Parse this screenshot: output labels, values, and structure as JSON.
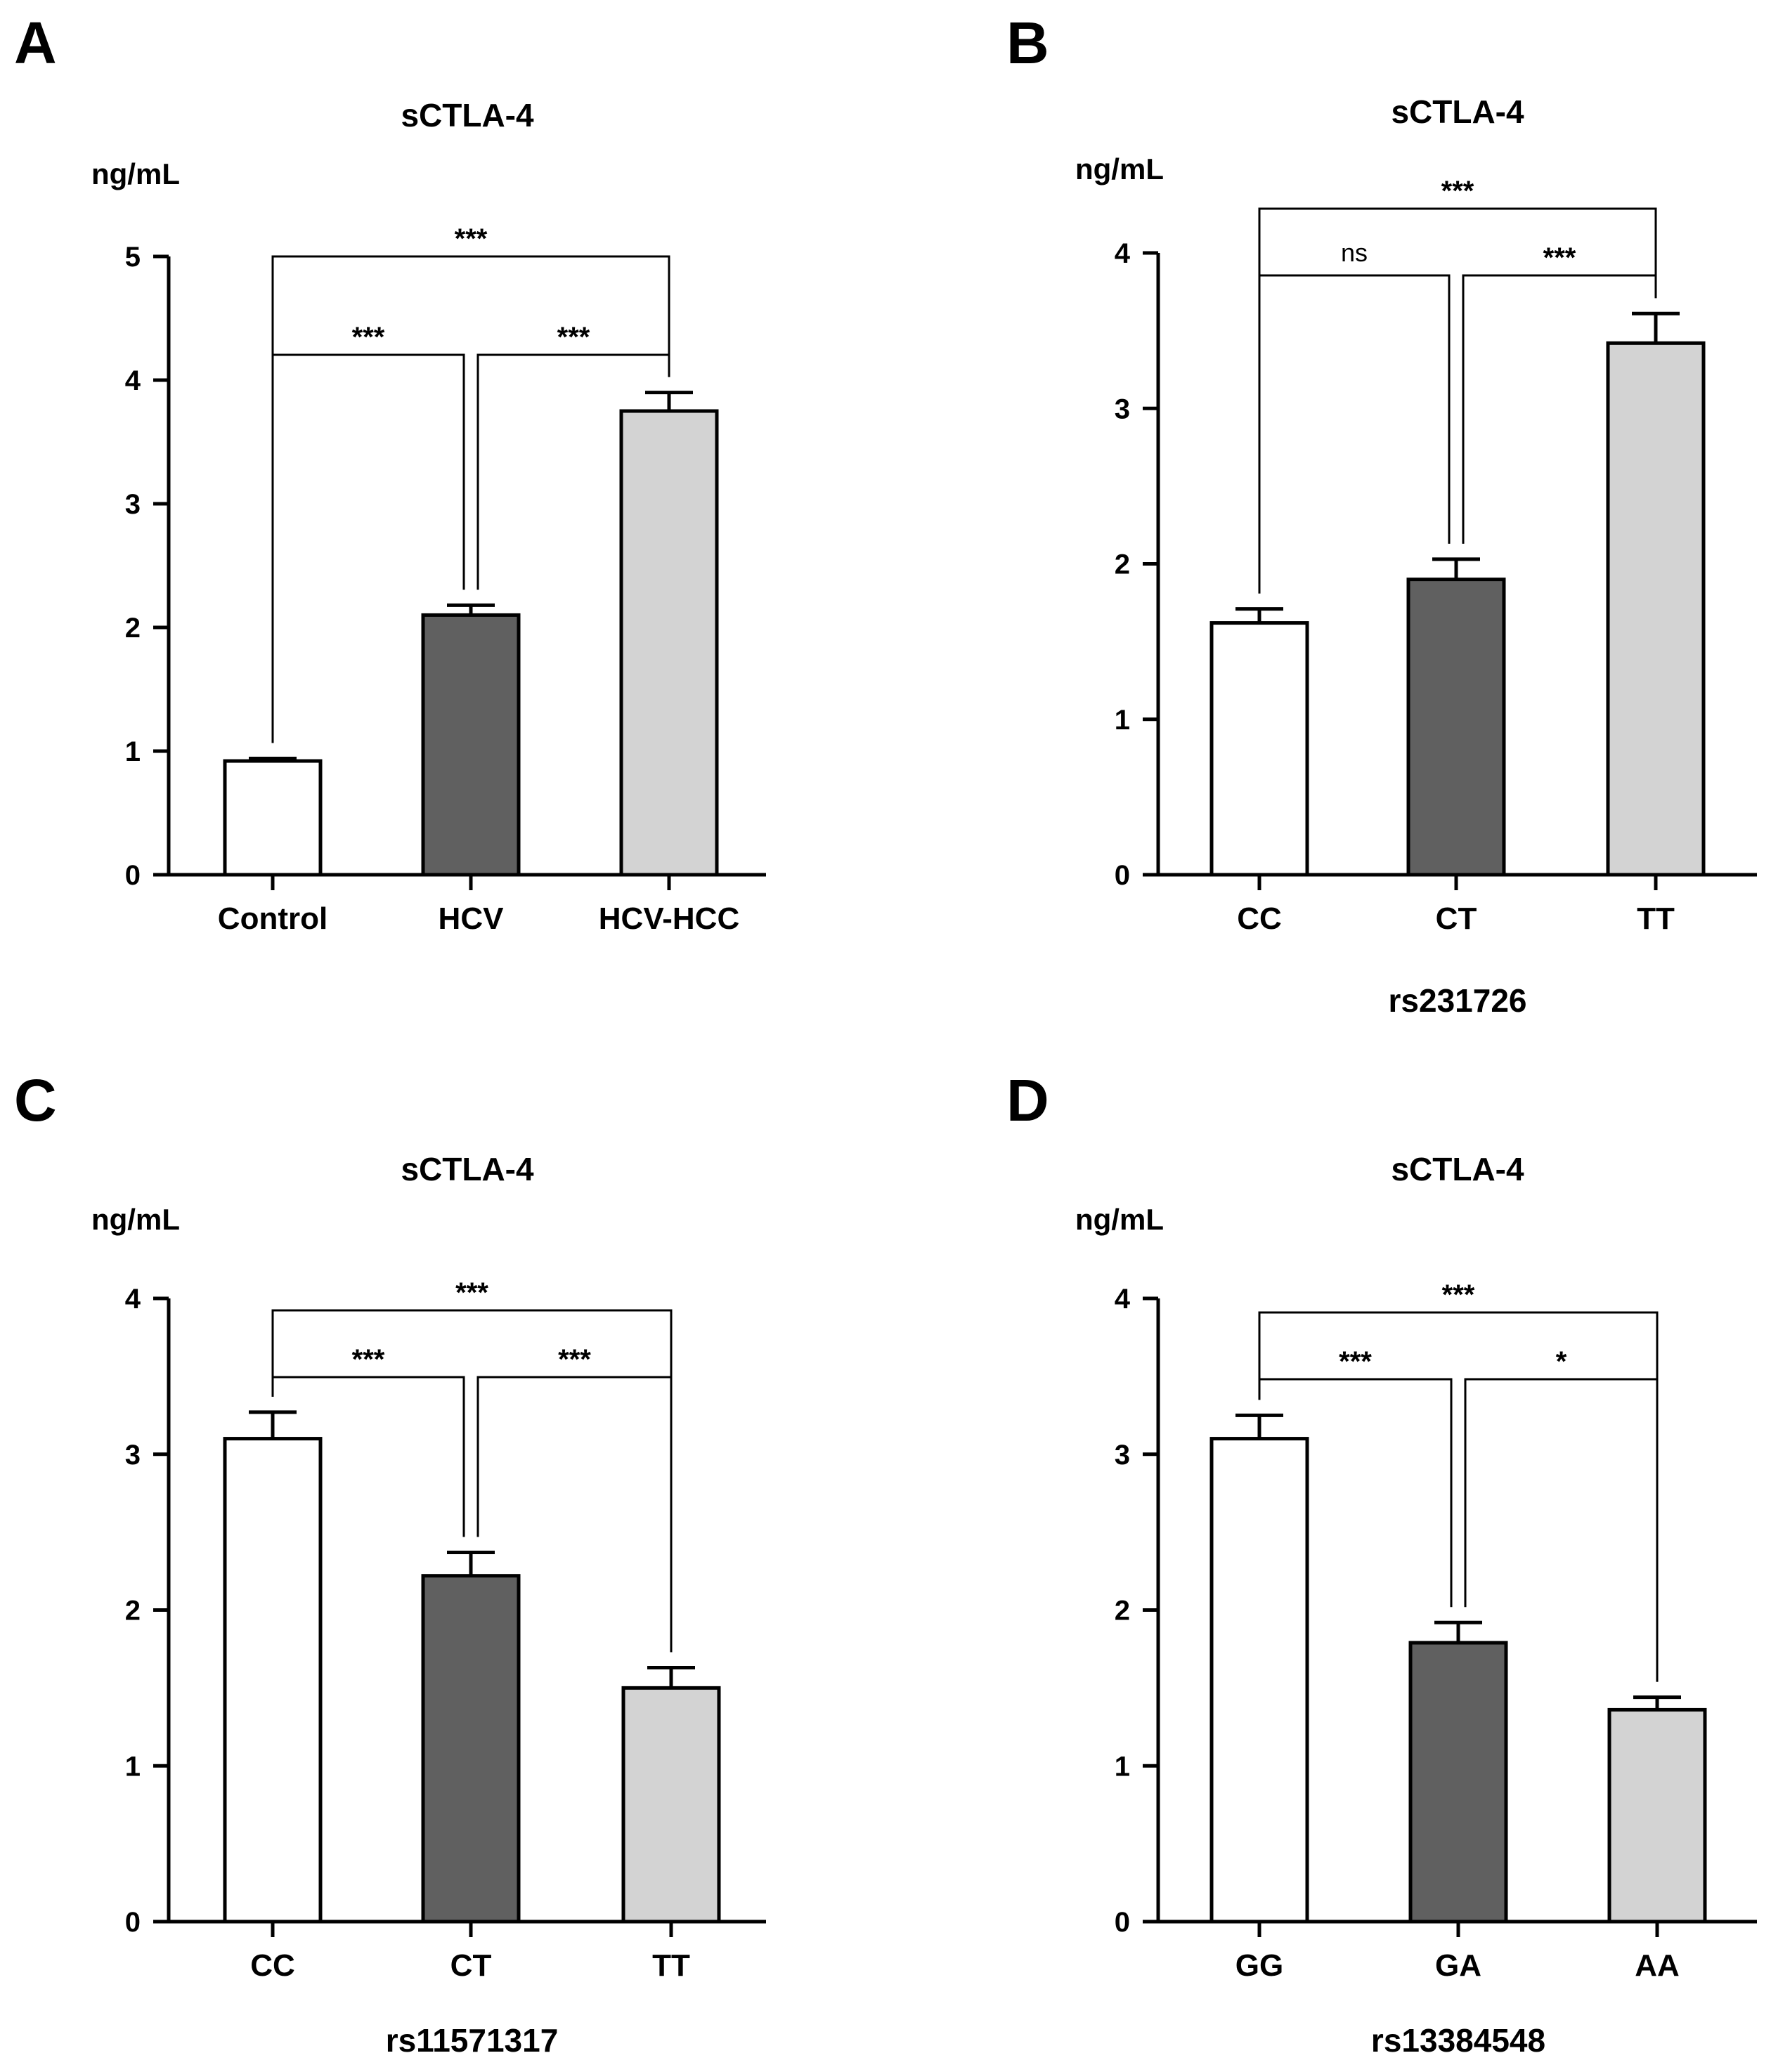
{
  "chart_data": [
    {
      "panel": "A",
      "type": "bar",
      "title": "sCTLA-4",
      "ylabel": "ng/mL",
      "xlabel": "",
      "ylim": [
        0,
        5
      ],
      "yticks": [
        "0",
        "1",
        "2",
        "3",
        "4",
        "5"
      ],
      "categories": [
        "Control",
        "HCV",
        "HCV-HCC"
      ],
      "values": [
        0.92,
        2.1,
        3.75
      ],
      "errors": [
        0.02,
        0.08,
        0.15
      ],
      "colors": [
        "#ffffff",
        "#606060",
        "#d3d3d3"
      ],
      "comparisons": [
        {
          "from": 0,
          "to": 1,
          "label": "***"
        },
        {
          "from": 1,
          "to": 2,
          "label": "***"
        },
        {
          "from": 0,
          "to": 2,
          "label": "***"
        }
      ]
    },
    {
      "panel": "B",
      "type": "bar",
      "title": "sCTLA-4",
      "ylabel": "ng/mL",
      "xlabel": "rs231726",
      "ylim": [
        0,
        4
      ],
      "yticks": [
        "0",
        "1",
        "2",
        "3",
        "4"
      ],
      "categories": [
        "CC",
        "CT",
        "TT"
      ],
      "values": [
        1.62,
        1.9,
        3.42
      ],
      "errors": [
        0.09,
        0.13,
        0.19
      ],
      "colors": [
        "#ffffff",
        "#606060",
        "#d3d3d3"
      ],
      "comparisons": [
        {
          "from": 0,
          "to": 1,
          "label": "ns"
        },
        {
          "from": 1,
          "to": 2,
          "label": "***"
        },
        {
          "from": 0,
          "to": 2,
          "label": "***"
        }
      ]
    },
    {
      "panel": "C",
      "type": "bar",
      "title": "sCTLA-4",
      "ylabel": "ng/mL",
      "xlabel": "rs11571317",
      "ylim": [
        0,
        4
      ],
      "yticks": [
        "0",
        "1",
        "2",
        "3",
        "4"
      ],
      "categories": [
        "CC",
        "CT",
        "TT"
      ],
      "values": [
        3.1,
        2.22,
        1.5
      ],
      "errors": [
        0.17,
        0.15,
        0.13
      ],
      "colors": [
        "#ffffff",
        "#606060",
        "#d3d3d3"
      ],
      "comparisons": [
        {
          "from": 0,
          "to": 1,
          "label": "***"
        },
        {
          "from": 1,
          "to": 2,
          "label": "***"
        },
        {
          "from": 0,
          "to": 2,
          "label": "***"
        }
      ]
    },
    {
      "panel": "D",
      "type": "bar",
      "title": "sCTLA-4",
      "ylabel": "ng/mL",
      "xlabel": "rs13384548",
      "ylim": [
        0,
        4
      ],
      "yticks": [
        "0",
        "1",
        "2",
        "3",
        "4"
      ],
      "categories": [
        "GG",
        "GA",
        "AA"
      ],
      "values": [
        3.1,
        1.79,
        1.36
      ],
      "errors": [
        0.15,
        0.13,
        0.08
      ],
      "colors": [
        "#ffffff",
        "#606060",
        "#d3d3d3"
      ],
      "comparisons": [
        {
          "from": 0,
          "to": 1,
          "label": "***"
        },
        {
          "from": 1,
          "to": 2,
          "label": "*"
        },
        {
          "from": 0,
          "to": 2,
          "label": "***"
        }
      ]
    }
  ]
}
